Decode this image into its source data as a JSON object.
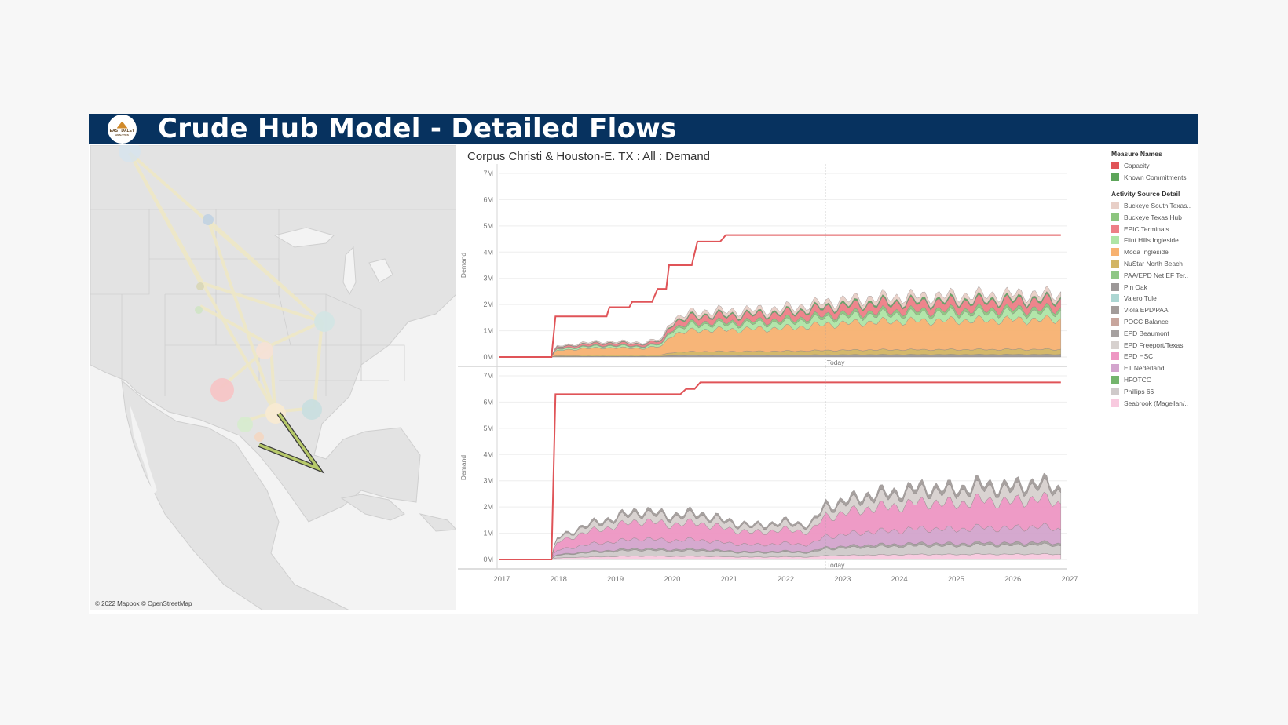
{
  "header": {
    "title": "Crude Hub Model - Detailed Flows",
    "logo_text": "EAST DALEY",
    "logo_subtext": "ANALYTICS"
  },
  "map": {
    "credit": "© 2022 Mapbox © OpenStreetMap"
  },
  "chart_title": "Corpus Christi & Houston-E. TX : All : Demand",
  "legend": {
    "measure_title": "Measure Names",
    "measures": [
      {
        "label": "Capacity",
        "color": "#e05458"
      },
      {
        "label": "Known Commitments",
        "color": "#5da55a"
      }
    ],
    "activity_title": "Activity Source Detail",
    "activities": [
      {
        "label": "Buckeye South Texas..",
        "color": "#e8cfc7"
      },
      {
        "label": "Buckeye Texas Hub",
        "color": "#8cc57e"
      },
      {
        "label": "EPIC Terminals",
        "color": "#ee7f86"
      },
      {
        "label": "Flint Hills Ingleside",
        "color": "#aee5a6"
      },
      {
        "label": "Moda Ingleside",
        "color": "#f7b271"
      },
      {
        "label": "NuStar North Beach",
        "color": "#d2b564"
      },
      {
        "label": "PAA/EPD Net EF Ter..",
        "color": "#8fc785"
      },
      {
        "label": "Pin Oak",
        "color": "#9c9898"
      },
      {
        "label": "Valero Tule",
        "color": "#acd6d2"
      },
      {
        "label": "Viola EPD/PAA",
        "color": "#a39c9a"
      },
      {
        "label": "POCC Balance",
        "color": "#c8a69d"
      },
      {
        "label": "EPD Beaumont",
        "color": "#a6a1a0"
      },
      {
        "label": "EPD Freeport/Texas",
        "color": "#d7d1cf"
      },
      {
        "label": "EPD HSC",
        "color": "#ee96c3"
      },
      {
        "label": "ET Nederland",
        "color": "#d3a5cd"
      },
      {
        "label": "HFOTCO",
        "color": "#74b46c"
      },
      {
        "label": "Phillips 66",
        "color": "#cfcaca"
      },
      {
        "label": "Seabrook (Magellan/..",
        "color": "#f8cadf"
      }
    ]
  },
  "chart_data": [
    {
      "type": "area",
      "ylabel": "Demand",
      "ylim": [
        0,
        7000000
      ],
      "y_ticks": [
        "0M",
        "1M",
        "2M",
        "3M",
        "4M",
        "5M",
        "6M",
        "7M"
      ],
      "x_ticks": [
        "2017",
        "2018",
        "2019",
        "2020",
        "2021",
        "2022",
        "2023",
        "2024",
        "2025",
        "2026",
        "2027"
      ],
      "today_label": "Today",
      "today_x": 2022.75,
      "capacity": {
        "name": "Capacity",
        "color": "#e05458",
        "steps": [
          [
            2017.0,
            0
          ],
          [
            2017.93,
            0
          ],
          [
            2018.0,
            1550000
          ],
          [
            2018.9,
            1550000
          ],
          [
            2018.95,
            1900000
          ],
          [
            2019.3,
            1900000
          ],
          [
            2019.35,
            2100000
          ],
          [
            2019.7,
            2100000
          ],
          [
            2019.8,
            2600000
          ],
          [
            2019.95,
            2600000
          ],
          [
            2020.0,
            3500000
          ],
          [
            2020.4,
            3500000
          ],
          [
            2020.5,
            4400000
          ],
          [
            2020.9,
            4400000
          ],
          [
            2021.0,
            4650000
          ],
          [
            2026.9,
            4650000
          ]
        ]
      },
      "stacked_totals": [
        [
          2017.93,
          0
        ],
        [
          2018.0,
          400000
        ],
        [
          2018.5,
          550000
        ],
        [
          2019.0,
          600000
        ],
        [
          2019.5,
          550000
        ],
        [
          2019.9,
          700000
        ],
        [
          2020.0,
          1400000
        ],
        [
          2020.5,
          1750000
        ],
        [
          2021.0,
          1750000
        ],
        [
          2021.5,
          1800000
        ],
        [
          2022.0,
          1850000
        ],
        [
          2022.5,
          2000000
        ],
        [
          2022.75,
          2100000
        ],
        [
          2023.5,
          2250000
        ],
        [
          2024.0,
          2300000
        ],
        [
          2025.0,
          2350000
        ],
        [
          2026.0,
          2400000
        ],
        [
          2026.9,
          2400000
        ]
      ],
      "stack_shares": [
        {
          "name": "Pin Oak",
          "share": 0.04,
          "color": "#9c9898"
        },
        {
          "name": "NuStar North Beach",
          "share": 0.08,
          "color": "#d2b564"
        },
        {
          "name": "Moda Ingleside",
          "share": 0.47,
          "color": "#f7b271"
        },
        {
          "name": "Flint Hills Ingleside",
          "share": 0.12,
          "color": "#aee5a6"
        },
        {
          "name": "Buckeye Texas Hub",
          "share": 0.05,
          "color": "#8cc57e"
        },
        {
          "name": "EPIC Terminals",
          "share": 0.13,
          "color": "#ee7f86"
        },
        {
          "name": "Known Commitments",
          "share": 0.03,
          "color": "#5da55a"
        },
        {
          "name": "Buckeye South Texas..",
          "share": 0.08,
          "color": "#e8cfc7"
        }
      ]
    },
    {
      "type": "area",
      "ylabel": "Demand",
      "ylim": [
        0,
        7000000
      ],
      "y_ticks": [
        "0M",
        "1M",
        "2M",
        "3M",
        "4M",
        "5M",
        "6M",
        "7M"
      ],
      "x_ticks": [
        "2017",
        "2018",
        "2019",
        "2020",
        "2021",
        "2022",
        "2023",
        "2024",
        "2025",
        "2026",
        "2027"
      ],
      "today_label": "Today",
      "today_x": 2022.75,
      "capacity": {
        "name": "Capacity",
        "color": "#e05458",
        "steps": [
          [
            2017.0,
            0
          ],
          [
            2017.93,
            0
          ],
          [
            2018.0,
            6300000
          ],
          [
            2020.2,
            6300000
          ],
          [
            2020.3,
            6500000
          ],
          [
            2020.45,
            6500000
          ],
          [
            2020.55,
            6750000
          ],
          [
            2026.9,
            6750000
          ]
        ]
      },
      "stacked_totals": [
        [
          2017.93,
          0
        ],
        [
          2018.0,
          800000
        ],
        [
          2018.5,
          1300000
        ],
        [
          2019.0,
          1600000
        ],
        [
          2019.5,
          1900000
        ],
        [
          2020.0,
          1700000
        ],
        [
          2020.5,
          1800000
        ],
        [
          2021.0,
          1500000
        ],
        [
          2021.5,
          1300000
        ],
        [
          2022.0,
          1450000
        ],
        [
          2022.5,
          1350000
        ],
        [
          2022.75,
          2100000
        ],
        [
          2023.0,
          2200000
        ],
        [
          2023.5,
          2500000
        ],
        [
          2024.0,
          2600000
        ],
        [
          2024.5,
          2800000
        ],
        [
          2025.0,
          2700000
        ],
        [
          2025.5,
          2900000
        ],
        [
          2026.0,
          2800000
        ],
        [
          2026.5,
          3000000
        ],
        [
          2026.9,
          2700000
        ]
      ],
      "stack_shares": [
        {
          "name": "Seabrook (Magellan/..",
          "share": 0.07,
          "color": "#f8cadf"
        },
        {
          "name": "Phillips 66",
          "share": 0.12,
          "color": "#cfcaca"
        },
        {
          "name": "EPD Beaumont",
          "share": 0.03,
          "color": "#a6a1a0"
        },
        {
          "name": "ET Nederland",
          "share": 0.2,
          "color": "#d3a5cd"
        },
        {
          "name": "EPD HSC",
          "share": 0.36,
          "color": "#ee96c3"
        },
        {
          "name": "EPD Freeport/Texas",
          "share": 0.16,
          "color": "#d7d1cf"
        },
        {
          "name": "Viola EPD/PAA",
          "share": 0.06,
          "color": "#a39c9a"
        }
      ]
    }
  ]
}
